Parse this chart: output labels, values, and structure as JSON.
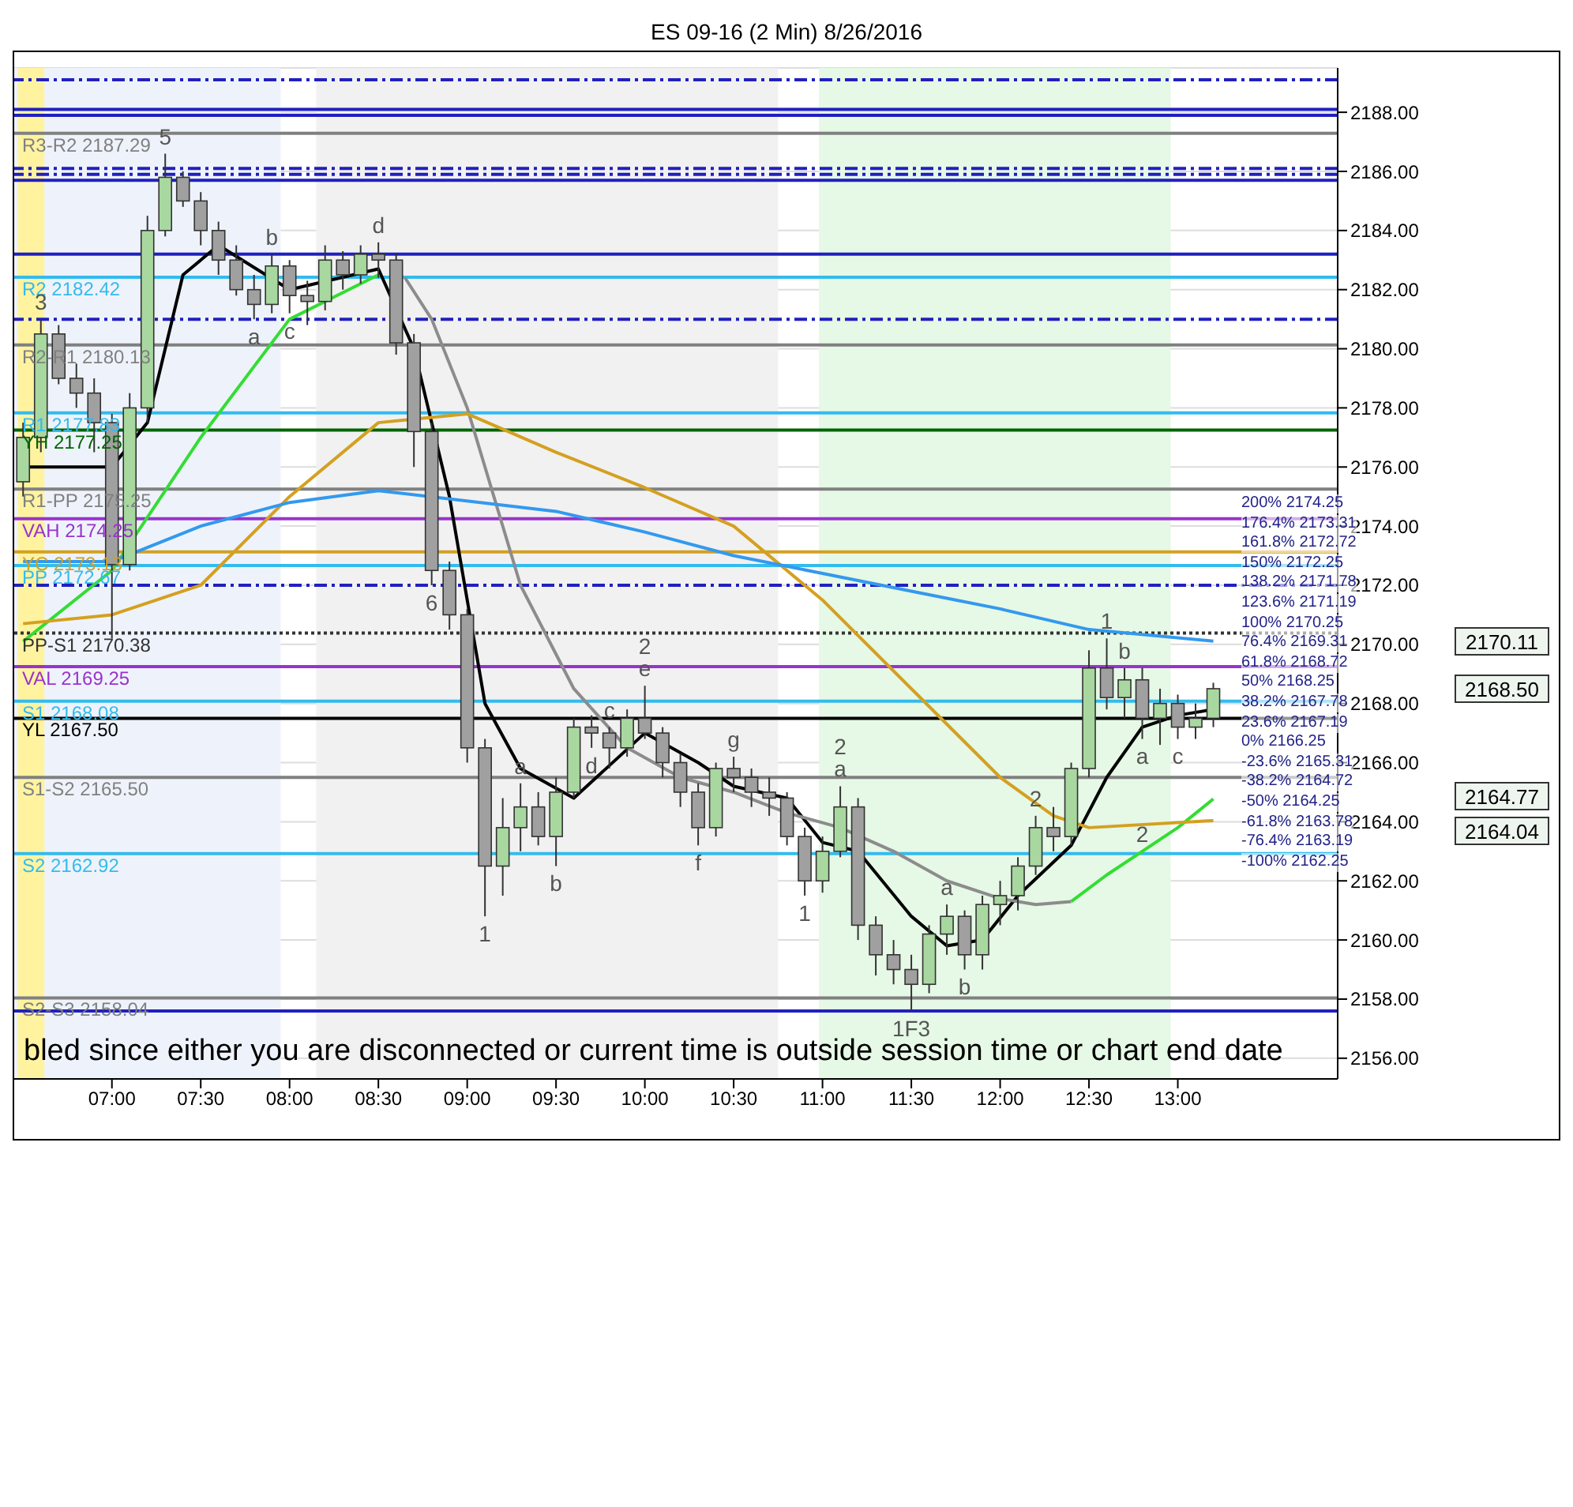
{
  "chart_data": {
    "type": "candlestick",
    "title": "ES 09-16 (2 Min)  8/26/2016",
    "xlim": [
      6.45,
      13.9
    ],
    "xticks": [
      {
        "value": 7,
        "label": "07:00"
      },
      {
        "value": 7.5,
        "label": "07:30"
      },
      {
        "value": 8,
        "label": "08:00"
      },
      {
        "value": 8.5,
        "label": "08:30"
      },
      {
        "value": 9,
        "label": "09:00"
      },
      {
        "value": 9.5,
        "label": "09:30"
      },
      {
        "value": 10,
        "label": "10:00"
      },
      {
        "value": 10.5,
        "label": "10:30"
      },
      {
        "value": 11,
        "label": "11:00"
      },
      {
        "value": 11.5,
        "label": "11:30"
      },
      {
        "value": 12,
        "label": "12:00"
      },
      {
        "value": 12.5,
        "label": "12:30"
      },
      {
        "value": 13,
        "label": "13:00"
      }
    ],
    "ylim": [
      2155.3,
      2189.5
    ],
    "yticks": [
      {
        "value": 2156,
        "label": "2156.00"
      },
      {
        "value": 2158,
        "label": "2158.00"
      },
      {
        "value": 2160,
        "label": "2160.00"
      },
      {
        "value": 2162,
        "label": "2162.00"
      },
      {
        "value": 2164,
        "label": "2164.00"
      },
      {
        "value": 2166,
        "label": "2166.00"
      },
      {
        "value": 2168,
        "label": "2168.00"
      },
      {
        "value": 2170,
        "label": "2170.00"
      },
      {
        "value": 2172,
        "label": "2172.00"
      },
      {
        "value": 2174,
        "label": "2174.00"
      },
      {
        "value": 2176,
        "label": "2176.00"
      },
      {
        "value": 2178,
        "label": "2178.00"
      },
      {
        "value": 2180,
        "label": "2180.00"
      },
      {
        "value": 2182,
        "label": "2182.00"
      },
      {
        "value": 2184,
        "label": "2184.00"
      },
      {
        "value": 2186,
        "label": "2186.00"
      },
      {
        "value": 2188,
        "label": "2188.00"
      }
    ],
    "grid": "y",
    "series": [
      {
        "x": [
          6.5,
          6.6,
          6.7,
          6.8,
          6.9,
          7.0,
          7.1,
          7.2,
          7.3,
          7.4,
          7.5,
          7.6,
          7.7,
          7.8,
          7.9,
          8.0,
          8.1,
          8.2,
          8.3,
          8.4,
          8.5,
          8.6,
          8.7,
          8.8,
          8.9,
          9.0,
          9.1,
          9.2,
          9.3,
          9.4,
          9.5,
          9.6,
          9.7,
          9.8,
          9.9,
          10.0,
          10.1,
          10.2,
          10.3,
          10.4,
          10.5,
          10.6,
          10.7,
          10.8,
          10.9,
          11.0,
          11.1,
          11.2,
          11.3,
          11.4,
          11.5,
          11.6,
          11.7,
          11.8,
          11.9,
          12.0,
          12.1,
          12.2,
          12.3,
          12.4,
          12.5,
          12.6,
          12.7,
          12.8,
          12.9,
          13.0,
          13.1,
          13.2
        ],
        "colors": [
          "#a8d8a0",
          "#a8d8a0",
          "#a0a0a0",
          "#a0a0a0",
          "#a0a0a0",
          "#a0a0a0",
          "#a8d8a0",
          "#a8d8a0",
          "#a8d8a0",
          "#a0a0a0",
          "#a0a0a0",
          "#a0a0a0",
          "#a0a0a0",
          "#a0a0a0",
          "#a8d8a0",
          "#a0a0a0",
          "#a0a0a0",
          "#a8d8a0",
          "#a0a0a0",
          "#a8d8a0",
          "#a0a0a0",
          "#a0a0a0",
          "#a0a0a0",
          "#a0a0a0",
          "#a0a0a0",
          "#a0a0a0",
          "#a0a0a0",
          "#a8d8a0",
          "#a8d8a0",
          "#a0a0a0",
          "#a8d8a0",
          "#a8d8a0",
          "#a0a0a0",
          "#a0a0a0",
          "#a8d8a0",
          "#a0a0a0",
          "#a0a0a0",
          "#a0a0a0",
          "#a0a0a0",
          "#a8d8a0",
          "#a0a0a0",
          "#a0a0a0",
          "#a0a0a0",
          "#a0a0a0",
          "#a0a0a0",
          "#a8d8a0",
          "#a8d8a0",
          "#a0a0a0",
          "#a0a0a0",
          "#a0a0a0",
          "#a0a0a0",
          "#a8d8a0",
          "#a8d8a0",
          "#a0a0a0",
          "#a8d8a0",
          "#a8d8a0",
          "#a8d8a0",
          "#a8d8a0",
          "#a0a0a0",
          "#a8d8a0",
          "#a8d8a0",
          "#a0a0a0",
          "#a8d8a0",
          "#a0a0a0",
          "#a8d8a0",
          "#a0a0a0",
          "#a8d8a0",
          "#a8d8a0"
        ],
        "ohlc": [
          [
            2175.5,
            2177.5,
            2175,
            2177
          ],
          [
            2177,
            2181,
            2176.5,
            2180.5
          ],
          [
            2180.5,
            2180.8,
            2178.8,
            2179
          ],
          [
            2179,
            2179.5,
            2178,
            2178.5
          ],
          [
            2178.5,
            2179,
            2176.5,
            2177.5
          ],
          [
            2177.5,
            2177.8,
            2170.2,
            2172.7
          ],
          [
            2172.7,
            2178.5,
            2172.5,
            2178
          ],
          [
            2178,
            2184.5,
            2177.5,
            2184
          ],
          [
            2184,
            2186.6,
            2183.8,
            2185.8
          ],
          [
            2185.8,
            2186,
            2184.8,
            2185
          ],
          [
            2185,
            2185.3,
            2183.5,
            2184
          ],
          [
            2184,
            2184.3,
            2182.5,
            2183
          ],
          [
            2183,
            2183.5,
            2181.8,
            2182
          ],
          [
            2182,
            2182.5,
            2181,
            2181.5
          ],
          [
            2181.5,
            2183.2,
            2181.2,
            2182.8
          ],
          [
            2182.8,
            2183,
            2181.2,
            2181.8
          ],
          [
            2181.8,
            2182.3,
            2180.8,
            2181.6
          ],
          [
            2181.6,
            2183.5,
            2181.3,
            2183
          ],
          [
            2183,
            2183.3,
            2182,
            2182.5
          ],
          [
            2182.5,
            2183.5,
            2182.2,
            2183.2
          ],
          [
            2183.2,
            2183.6,
            2182.4,
            2183
          ],
          [
            2183,
            2183.2,
            2179.8,
            2180.2
          ],
          [
            2180.2,
            2180.5,
            2176,
            2177.2
          ],
          [
            2177.2,
            2177.5,
            2172,
            2172.5
          ],
          [
            2172.5,
            2172.8,
            2170.5,
            2171
          ],
          [
            2171,
            2171.2,
            2166,
            2166.5
          ],
          [
            2166.5,
            2166.8,
            2160.8,
            2162.5
          ],
          [
            2162.5,
            2164.8,
            2161.5,
            2163.8
          ],
          [
            2163.8,
            2165.3,
            2163,
            2164.5
          ],
          [
            2164.5,
            2165,
            2163.2,
            2163.5
          ],
          [
            2163.5,
            2165.5,
            2162.5,
            2165
          ],
          [
            2165,
            2167.5,
            2164.8,
            2167.2
          ],
          [
            2167.2,
            2167.6,
            2166.5,
            2167
          ],
          [
            2167,
            2167.2,
            2165.8,
            2166.5
          ],
          [
            2166.5,
            2167.8,
            2166.2,
            2167.5
          ],
          [
            2167.5,
            2168.6,
            2166.8,
            2167
          ],
          [
            2167,
            2167.2,
            2165.5,
            2166
          ],
          [
            2166,
            2166.3,
            2164.5,
            2165
          ],
          [
            2165,
            2165.3,
            2163.2,
            2163.8
          ],
          [
            2163.8,
            2166,
            2163.5,
            2165.8
          ],
          [
            2165.8,
            2166.2,
            2165,
            2165.5
          ],
          [
            2165.5,
            2165.8,
            2164.5,
            2165
          ],
          [
            2165,
            2165.5,
            2164.2,
            2164.8
          ],
          [
            2164.8,
            2165,
            2163.2,
            2163.5
          ],
          [
            2163.5,
            2163.8,
            2161.5,
            2162
          ],
          [
            2162,
            2163.5,
            2161.6,
            2163
          ],
          [
            2163,
            2165.2,
            2162.8,
            2164.5
          ],
          [
            2164.5,
            2164.8,
            2160,
            2160.5
          ],
          [
            2160.5,
            2160.8,
            2158.8,
            2159.5
          ],
          [
            2159.5,
            2160,
            2158.5,
            2159
          ],
          [
            2159,
            2159.5,
            2157.6,
            2158.5
          ],
          [
            2158.5,
            2160.5,
            2158.2,
            2160.2
          ],
          [
            2160.2,
            2161.2,
            2159.5,
            2160.8
          ],
          [
            2160.8,
            2161,
            2159,
            2159.5
          ],
          [
            2159.5,
            2161.5,
            2159,
            2161.2
          ],
          [
            2161.2,
            2162,
            2160.5,
            2161.5
          ],
          [
            2161.5,
            2162.8,
            2161,
            2162.5
          ],
          [
            2162.5,
            2164.2,
            2162.2,
            2163.8
          ],
          [
            2163.8,
            2164.5,
            2163,
            2163.5
          ],
          [
            2163.5,
            2166,
            2163.2,
            2165.8
          ],
          [
            2165.8,
            2169.8,
            2165.5,
            2169.2
          ],
          [
            2169.2,
            2170.2,
            2167.8,
            2168.2
          ],
          [
            2168.2,
            2169.2,
            2167.5,
            2168.8
          ],
          [
            2168.8,
            2169.2,
            2166.8,
            2167.5
          ],
          [
            2167.5,
            2168.5,
            2166.6,
            2168
          ],
          [
            2168,
            2168.3,
            2166.8,
            2167.2
          ],
          [
            2167.2,
            2168,
            2166.8,
            2167.5
          ],
          [
            2167.5,
            2168.7,
            2167.2,
            2168.5
          ]
        ]
      },
      {
        "type": "line",
        "color": "#000000",
        "x": [
          6.5,
          7.0,
          7.2,
          7.4,
          7.6,
          8.0,
          8.5,
          8.7,
          8.9,
          9.1,
          9.3,
          9.6,
          10.0,
          10.3,
          10.5,
          10.8,
          11.0,
          11.2,
          11.5,
          11.7,
          11.9,
          12.1,
          12.4,
          12.6,
          12.8,
          13.0,
          13.2
        ],
        "values": [
          2176,
          2176,
          2177.5,
          2182.5,
          2183.5,
          2182,
          2182.7,
          2180,
          2175,
          2168,
          2165.8,
          2164.8,
          2167,
          2166,
          2165.2,
          2164.8,
          2163.3,
          2163,
          2160.8,
          2159.8,
          2160,
          2161.5,
          2163.2,
          2165.5,
          2167.2,
          2167.6,
          2167.8
        ]
      },
      {
        "type": "line",
        "color": "#33dd33",
        "x": [
          6.5,
          7.0,
          7.5,
          8.0,
          8.5
        ],
        "values": [
          2170.1,
          2172.5,
          2177,
          2181,
          2182.5
        ]
      },
      {
        "type": "line",
        "color": "#8c8c8c",
        "x": [
          8.65,
          8.8,
          9.0,
          9.3,
          9.6,
          9.9,
          10.2,
          10.5,
          10.8,
          11.1,
          11.4,
          11.7,
          12.0,
          12.2,
          12.4
        ],
        "values": [
          2182.4,
          2181,
          2178,
          2172,
          2168.5,
          2166.5,
          2165.5,
          2165,
          2164.3,
          2163.8,
          2163,
          2162,
          2161.4,
          2161.2,
          2161.3
        ]
      },
      {
        "type": "line",
        "color": "#33dd33",
        "x": [
          12.4,
          12.6,
          12.8,
          13.0,
          13.2
        ],
        "values": [
          2161.3,
          2162.2,
          2163,
          2163.8,
          2164.77
        ]
      },
      {
        "type": "line",
        "color": "#d4a020",
        "x": [
          6.5,
          7.0,
          7.5,
          8.0,
          8.5,
          9.0,
          9.5,
          10.0,
          10.5,
          11.0,
          11.5,
          12.0,
          12.3,
          12.5,
          13.2
        ],
        "values": [
          2170.7,
          2171,
          2172,
          2175,
          2177.5,
          2177.8,
          2176.5,
          2175.3,
          2174,
          2171.5,
          2168.5,
          2165.5,
          2164.2,
          2163.8,
          2164.04
        ]
      },
      {
        "type": "line",
        "color": "#3399ee",
        "x": [
          6.5,
          7.0,
          7.5,
          8.0,
          8.5,
          9.5,
          10.0,
          10.5,
          11.0,
          11.5,
          12.0,
          12.5,
          13.2
        ],
        "values": [
          2172.8,
          2172.8,
          2174,
          2174.8,
          2175.2,
          2174.5,
          2173.8,
          2173,
          2172.4,
          2171.8,
          2171.2,
          2170.5,
          2170.11
        ]
      }
    ],
    "bands": [
      {
        "axis": "x",
        "from": 6.45,
        "to": 7.95,
        "color": "#eef3fb"
      },
      {
        "axis": "x",
        "from": 6.47,
        "to": 6.62,
        "color": "#fff3a0"
      },
      {
        "axis": "x",
        "from": 8.15,
        "to": 10.75,
        "color": "#f1f1f1"
      },
      {
        "axis": "x",
        "from": 10.98,
        "to": 12.96,
        "color": "#e6f8e6"
      }
    ],
    "ref_lines": [
      {
        "axis": "y",
        "value": 2189.1,
        "color": "#2020c0",
        "line_style": "dashed"
      },
      {
        "axis": "y",
        "value": 2188.1,
        "color": "#2020c0"
      },
      {
        "axis": "y",
        "value": 2187.9,
        "color": "#2020c0"
      },
      {
        "axis": "y",
        "value": 2187.29,
        "label": "R3-R2 2187.29",
        "color": "#808080"
      },
      {
        "axis": "y",
        "value": 2186.1,
        "color": "#2020c0",
        "line_style": "dashed"
      },
      {
        "axis": "y",
        "value": 2185.9,
        "color": "#2020c0",
        "line_style": "dashed"
      },
      {
        "axis": "y",
        "value": 2185.7,
        "color": "#2020c0"
      },
      {
        "axis": "y",
        "value": 2183.2,
        "color": "#2020c0"
      },
      {
        "axis": "y",
        "value": 2182.42,
        "label": "R2 2182.42",
        "color": "#33bbee"
      },
      {
        "axis": "y",
        "value": 2181.0,
        "color": "#2020c0",
        "line_style": "dashed"
      },
      {
        "axis": "y",
        "value": 2180.13,
        "label": "R2-R1 2180.13",
        "color": "#808080"
      },
      {
        "axis": "y",
        "value": 2177.83,
        "label": "R1 2177.83",
        "color": "#33bbee"
      },
      {
        "axis": "y",
        "value": 2177.25,
        "label": "YH 2177.25",
        "color": "#006400"
      },
      {
        "axis": "y",
        "value": 2175.25,
        "label": "R1-PP 2175.25",
        "color": "#808080"
      },
      {
        "axis": "y",
        "value": 2174.25,
        "label": "VAH 2174.25",
        "color": "#9933cc"
      },
      {
        "axis": "y",
        "value": 2173.13,
        "label": "YC 2173.13",
        "color": "#d4a020"
      },
      {
        "axis": "y",
        "value": 2172.67,
        "label": "PP 2172.67",
        "color": "#33bbee"
      },
      {
        "axis": "y",
        "value": 2172.0,
        "color": "#2020c0",
        "line_style": "dashed"
      },
      {
        "axis": "y",
        "value": 2170.38,
        "label": "PP-S1 2170.38",
        "color": "#333333",
        "line_style": "dotted"
      },
      {
        "axis": "y",
        "value": 2169.25,
        "label": "VAL 2169.25",
        "color": "#9933cc"
      },
      {
        "axis": "y",
        "value": 2168.08,
        "label": "S1 2168.08",
        "color": "#33bbee"
      },
      {
        "axis": "y",
        "value": 2167.5,
        "label": "YL 2167.50",
        "color": "#000000"
      },
      {
        "axis": "y",
        "value": 2165.5,
        "label": "S1-S2 2165.50",
        "color": "#808080"
      },
      {
        "axis": "y",
        "value": 2162.92,
        "label": "S2 2162.92",
        "color": "#33bbee"
      },
      {
        "axis": "y",
        "value": 2158.04,
        "label": "S2-S3 2158.04",
        "color": "#808080"
      },
      {
        "axis": "y",
        "value": 2157.6,
        "color": "#2020c0"
      }
    ],
    "annotations": [
      "bled since either you are disconnected or current time is outside session time or chart end date",
      "200%  2174.25",
      "176.4%  2173.31",
      "161.8%  2172.72",
      "150%  2172.25",
      "138.2%  2171.78",
      "123.6%  2171.19",
      "100%  2170.25",
      "76.4%  2169.31",
      "61.8%  2168.72",
      "50%  2168.25",
      "38.2%  2167.78",
      "23.6%  2167.19",
      "0%  2166.25",
      "-23.6%  2165.31",
      "-38.2%  2164.72",
      "-50%  2164.25",
      "-61.8%  2163.78",
      "-76.4%  2163.19",
      "-100%  2162.25",
      "2170.11",
      "2168.50",
      "2164.77",
      "2164.04",
      {
        "text": "3",
        "x": 6.6,
        "y": 2181
      },
      {
        "text": "5",
        "x": 7.3,
        "y": 2186.6
      },
      {
        "text": "a",
        "x": 7.8,
        "y": 2181
      },
      {
        "text": "b",
        "x": 7.9,
        "y": 2183.2
      },
      {
        "text": "c",
        "x": 8.0,
        "y": 2181.2
      },
      {
        "text": "d",
        "x": 8.5,
        "y": 2183.6
      },
      {
        "text": "6",
        "x": 8.8,
        "y": 2172
      },
      {
        "text": "1",
        "x": 9.1,
        "y": 2160.8
      },
      {
        "text": "a",
        "x": 9.3,
        "y": 2165.3
      },
      {
        "text": "b",
        "x": 9.5,
        "y": 2162.5
      },
      {
        "text": "c",
        "x": 9.8,
        "y": 2167.2
      },
      {
        "text": "d",
        "x": 9.7,
        "y": 2166.5
      },
      {
        "text": "e",
        "x": 10.0,
        "y": 2168.6
      },
      {
        "text": "2",
        "x": 10.0,
        "y": 2168.6
      },
      {
        "text": "f",
        "x": 10.3,
        "y": 2163.2
      },
      {
        "text": "g",
        "x": 10.5,
        "y": 2166.2
      },
      {
        "text": "1",
        "x": 10.9,
        "y": 2161.5
      },
      {
        "text": "a",
        "x": 11.1,
        "y": 2165.2
      },
      {
        "text": "2",
        "x": 11.1,
        "y": 2165.2
      },
      {
        "text": "1F3",
        "x": 11.5,
        "y": 2157.6
      },
      {
        "text": "a",
        "x": 11.7,
        "y": 2161.2
      },
      {
        "text": "b",
        "x": 11.8,
        "y": 2159
      },
      {
        "text": "2",
        "x": 12.2,
        "y": 2164.2
      },
      {
        "text": "1",
        "x": 12.6,
        "y": 2170.2
      },
      {
        "text": "b",
        "x": 12.7,
        "y": 2169.2
      },
      {
        "text": "a",
        "x": 12.8,
        "y": 2166.8
      },
      {
        "text": "c",
        "x": 13.0,
        "y": 2166.8
      },
      {
        "text": "2",
        "x": 12.8,
        "y": 2163
      }
    ]
  }
}
